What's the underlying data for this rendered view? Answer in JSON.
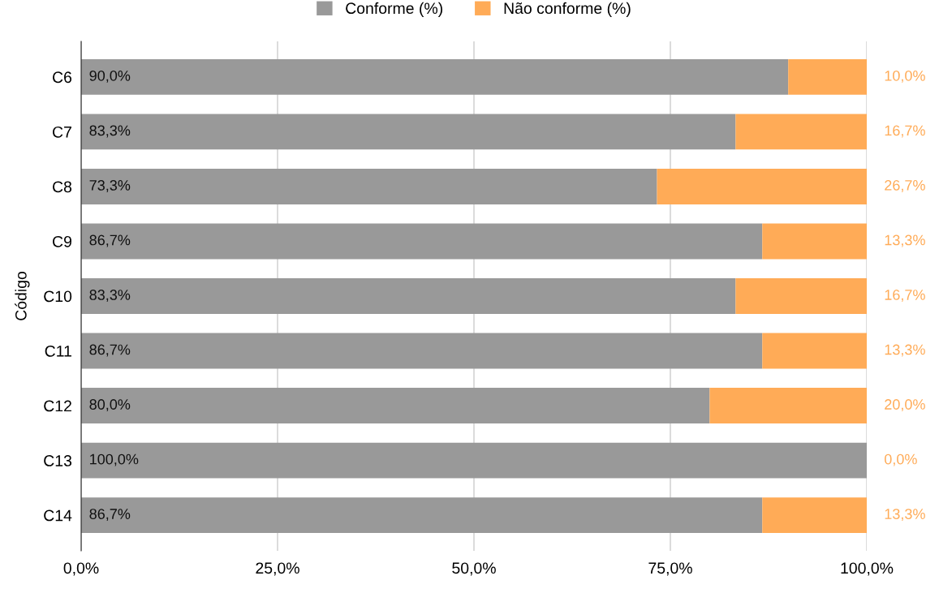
{
  "chart_data": {
    "type": "bar",
    "orientation": "horizontal",
    "stacked": true,
    "ylabel": "Código",
    "categories": [
      "C6",
      "C7",
      "C8",
      "C9",
      "C10",
      "C11",
      "C12",
      "C13",
      "C14"
    ],
    "series": [
      {
        "name": "Conforme (%)",
        "color": "#999999",
        "values": [
          90.0,
          83.3,
          73.3,
          86.7,
          83.3,
          86.7,
          80.0,
          100.0,
          86.7
        ],
        "value_labels": [
          "90,0%",
          "83,3%",
          "73,3%",
          "86,7%",
          "83,3%",
          "86,7%",
          "80,0%",
          "100,0%",
          "86,7%"
        ]
      },
      {
        "name": "Não conforme (%)",
        "color": "#ffab57",
        "values": [
          10.0,
          16.7,
          26.7,
          13.3,
          16.7,
          13.3,
          20.0,
          0.0,
          13.3
        ],
        "value_labels": [
          "10,0%",
          "16,7%",
          "26,7%",
          "13,3%",
          "16,7%",
          "13,3%",
          "20,0%",
          "0,0%",
          "13,3%"
        ]
      }
    ],
    "xlim": [
      0,
      100
    ],
    "xticks": [
      {
        "value": 0,
        "label": "0,0%"
      },
      {
        "value": 25,
        "label": "25,0%"
      },
      {
        "value": 50,
        "label": "50,0%"
      },
      {
        "value": 75,
        "label": "75,0%"
      },
      {
        "value": 100,
        "label": "100,0%"
      }
    ],
    "grid": "x",
    "legend": "top"
  }
}
